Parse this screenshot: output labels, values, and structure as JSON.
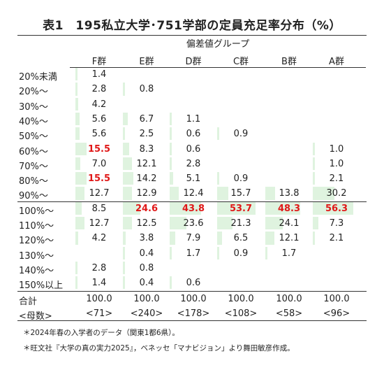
{
  "title": "表1　195私立大学･751学部の定員充足率分布（%）",
  "group_header": "偏差値グループ",
  "chart_data": {
    "type": "table",
    "columns": [
      "F群",
      "E群",
      "D群",
      "C群",
      "B群",
      "A群"
    ],
    "rows": [
      {
        "label": "20%未満",
        "values": [
          "1.4",
          "",
          "",
          "",
          "",
          ""
        ]
      },
      {
        "label": "20%〜",
        "values": [
          "2.8",
          "0.8",
          "",
          "",
          "",
          ""
        ]
      },
      {
        "label": "30%〜",
        "values": [
          "4.2",
          "",
          "",
          "",
          "",
          ""
        ]
      },
      {
        "label": "40%〜",
        "values": [
          "5.6",
          "6.7",
          "1.1",
          "",
          "",
          ""
        ]
      },
      {
        "label": "50%〜",
        "values": [
          "5.6",
          "2.5",
          "0.6",
          "0.9",
          "",
          ""
        ]
      },
      {
        "label": "60%〜",
        "values": [
          "15.5",
          "8.3",
          "0.6",
          "",
          "",
          "1.0"
        ]
      },
      {
        "label": "70%〜",
        "values": [
          "7.0",
          "12.1",
          "2.8",
          "",
          "",
          "1.0"
        ]
      },
      {
        "label": "80%〜",
        "values": [
          "15.5",
          "14.2",
          "5.1",
          "0.9",
          "",
          "2.1"
        ]
      },
      {
        "label": "90%〜",
        "values": [
          "12.7",
          "12.9",
          "12.4",
          "15.7",
          "13.8",
          "30.2"
        ]
      },
      {
        "label": "100%〜",
        "values": [
          "8.5",
          "24.6",
          "43.8",
          "53.7",
          "48.3",
          "56.3"
        ]
      },
      {
        "label": "110%〜",
        "values": [
          "12.7",
          "12.5",
          "23.6",
          "21.3",
          "24.1",
          "7.3"
        ]
      },
      {
        "label": "120%〜",
        "values": [
          "4.2",
          "3.8",
          "7.9",
          "6.5",
          "12.1",
          "2.1"
        ]
      },
      {
        "label": "130%〜",
        "values": [
          "",
          "0.4",
          "1.7",
          "0.9",
          "1.7",
          ""
        ]
      },
      {
        "label": "140%〜",
        "values": [
          "2.8",
          "0.8",
          "",
          "",
          "",
          ""
        ]
      },
      {
        "label": "150%以上",
        "values": [
          "1.4",
          "0.4",
          "0.6",
          "",
          "",
          ""
        ]
      }
    ],
    "highlighted": [
      [
        5,
        0
      ],
      [
        7,
        0
      ],
      [
        9,
        1
      ],
      [
        9,
        2
      ],
      [
        9,
        3
      ],
      [
        9,
        4
      ],
      [
        9,
        5
      ]
    ],
    "highlight_color": "#e01818",
    "bar_color": "#dff3df",
    "total": {
      "label": "合計",
      "values": [
        "100.0",
        "100.0",
        "100.0",
        "100.0",
        "100.0",
        "100.0"
      ]
    },
    "count": {
      "label": "<母数>",
      "values": [
        "<71>",
        "<240>",
        "<178>",
        "<108>",
        "<58>",
        "<96>"
      ]
    }
  },
  "notes": [
    "＊2024年春の入学者のデータ（関東1都6県）。",
    "＊旺文社『大学の真の実力2025』，ベネッセ「マナビジョン」より舞田敏彦作成。"
  ]
}
